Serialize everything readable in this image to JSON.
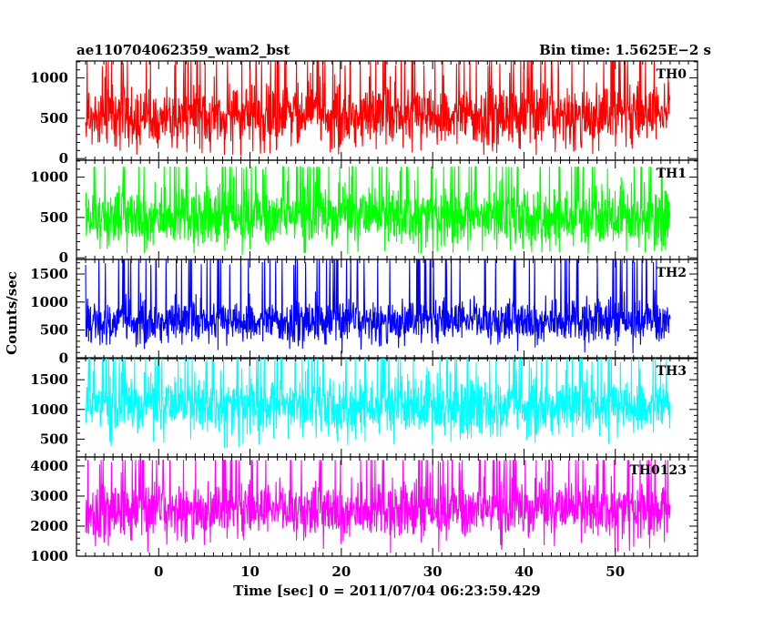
{
  "header": {
    "left_title": "ae110704062359_wam2_bst",
    "right_title": "Bin time: 1.5625E−2 s"
  },
  "chart_data": {
    "type": "line",
    "xlabel": "Time [sec] 0 = 2011/07/04 06:23:59.429",
    "ylabel": "Counts/sec",
    "xlim": [
      -9,
      59
    ],
    "x_ticks": [
      0,
      10,
      20,
      30,
      40,
      50
    ],
    "x_start": -8,
    "x_end": 56,
    "panels": [
      {
        "name": "TH0",
        "color": "#ff0000",
        "ylim": [
          -20,
          1210
        ],
        "y_ticks": [
          0,
          500,
          1000
        ],
        "mean": 520,
        "spread": 200,
        "min_level": 60,
        "max_level": 1210
      },
      {
        "name": "TH1",
        "color": "#00ff00",
        "ylim": [
          -20,
          1210
        ],
        "y_ticks": [
          0,
          500,
          1000
        ],
        "mean": 490,
        "spread": 190,
        "min_level": 60,
        "max_level": 1130
      },
      {
        "name": "TH2",
        "color": "#0000ff",
        "ylim": [
          -10,
          1760
        ],
        "y_ticks": [
          0,
          500,
          1000,
          1500
        ],
        "mean": 640,
        "spread": 200,
        "min_level": 110,
        "max_level": 1760
      },
      {
        "name": "TH3",
        "color": "#00ffff",
        "ylim": [
          200,
          1870
        ],
        "y_ticks": [
          500,
          1000,
          1500
        ],
        "mean": 1040,
        "spread": 250,
        "min_level": 320,
        "max_level": 1870
      },
      {
        "name": "TH0123",
        "color": "#ff00ff",
        "ylim": [
          1000,
          4300
        ],
        "y_ticks": [
          1000,
          2000,
          3000,
          4000
        ],
        "mean": 2480,
        "spread": 480,
        "min_level": 1020,
        "max_level": 4200
      }
    ]
  }
}
